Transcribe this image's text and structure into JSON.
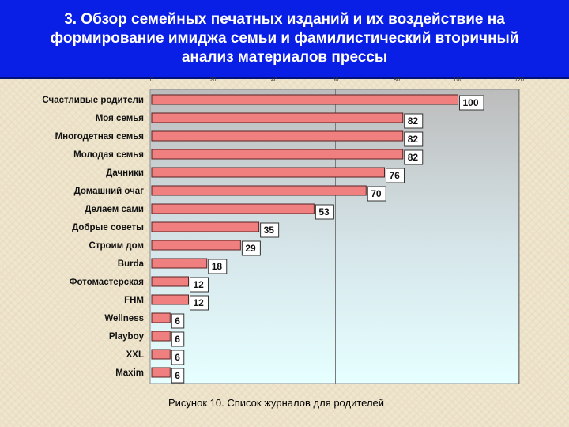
{
  "slide": {
    "title": "3. Обзор семейных печатных изданий и их воздействие на\nформирование имиджа семьи и фамилистический вторичный\nанализ материалов прессы",
    "title_bg": "#0a1fe6",
    "caption": "Рисунок 10. Список журналов для родителей"
  },
  "chart_data": {
    "type": "bar",
    "orientation": "horizontal",
    "title": "",
    "xlabel": "",
    "ylabel": "",
    "xlim": [
      0,
      120
    ],
    "x_ticks": [
      0,
      20,
      40,
      60,
      80,
      100,
      120
    ],
    "grid": "vertical lines at 60 and 120",
    "plot_background": "gradient gray (top) to light cyan (bottom)",
    "bar_color": "#f08080",
    "label_box": "white with dark border",
    "categories": [
      "Счастливые родители",
      "Моя семья",
      "Многодетная семья",
      "Молодая семья",
      "Дачники",
      "Домашний очаг",
      "Делаем сами",
      "Добрые советы",
      "Строим дом",
      "Burda",
      "Фотомастерская",
      "FHM",
      "Wellness",
      "Playboy",
      "XXL",
      "Maxim"
    ],
    "values": [
      100,
      82,
      82,
      82,
      76,
      70,
      53,
      35,
      29,
      18,
      12,
      12,
      6,
      6,
      6,
      6
    ]
  }
}
